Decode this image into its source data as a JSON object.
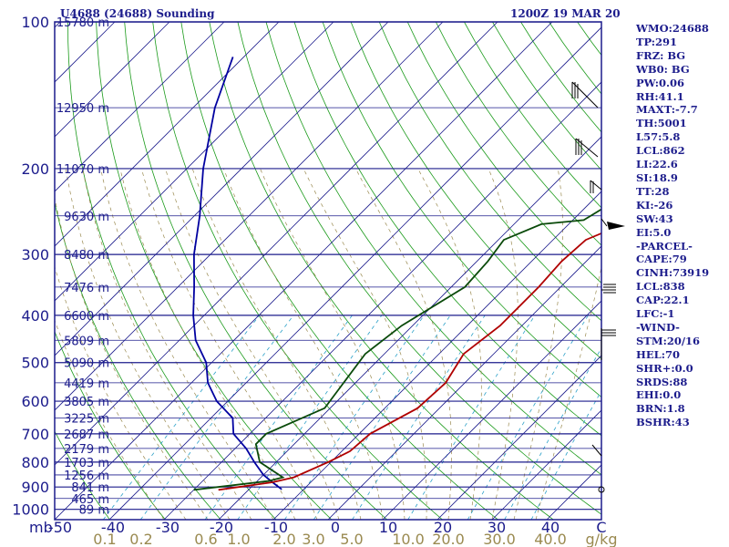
{
  "title_left": "U4688 (24688) Sounding",
  "title_right": "1200Z 19 MAR 20",
  "stats": [
    "WMO:24688",
    "TP:291",
    "FRZ: BG",
    "WB0: BG",
    "PW:0.06",
    "RH:41.1",
    "MAXT:-7.7",
    "TH:5001",
    "L57:5.8",
    "LCL:862",
    "LI:22.6",
    "SI:18.9",
    "TT:28",
    "KI:-26",
    "SW:43",
    "EI:5.0",
    "-PARCEL-",
    "CAPE:79",
    "CINH:73919",
    "LCL:838",
    "CAP:22.1",
    "LFC:-1",
    "-WIND-",
    "STM:20/16",
    "HEL:70",
    "SHR+:0.0",
    "SRDS:88",
    "EHI:0.0",
    "BRN:1.8",
    "BSHR:43"
  ],
  "colors": {
    "isobar": "#1c1c8c",
    "isotherm": "#1c1c8c",
    "dry_adiabat": "#1a9a1a",
    "moist_adiabat": "#9a8a50",
    "mixing_ratio": "#2aa0c8",
    "temperature": "#b00000",
    "dewpoint": "#0a4a0a",
    "parcel": "#0000a0",
    "text": "#1c1c8c",
    "mixing_label": "#9a8a50"
  },
  "chart_data": {
    "type": "skew-t",
    "pressure_ticks": [
      100,
      200,
      300,
      400,
      500,
      600,
      700,
      800,
      900,
      1000
    ],
    "pressure_unit_label": "mb",
    "temperature_ticks": [
      -50,
      -40,
      -30,
      -20,
      -10,
      0,
      10,
      20,
      30,
      40
    ],
    "temperature_end_label": "C",
    "mixing_ratio_ticks": [
      "0.1",
      "0.2",
      "0.6",
      "1.0",
      "2.0",
      "3.0",
      "5.0",
      "10.0",
      "20.0",
      "30.0",
      "40.0"
    ],
    "mixing_ratio_unit": "g/kg",
    "height_labels": [
      {
        "p": 100,
        "label": "15780 m"
      },
      {
        "p": 150,
        "label": "12950 m"
      },
      {
        "p": 200,
        "label": "11070 m"
      },
      {
        "p": 250,
        "label": "9630 m"
      },
      {
        "p": 300,
        "label": "8480 m"
      },
      {
        "p": 350,
        "label": "7476 m"
      },
      {
        "p": 400,
        "label": "6600 m"
      },
      {
        "p": 450,
        "label": "5809 m"
      },
      {
        "p": 500,
        "label": "5090 m"
      },
      {
        "p": 550,
        "label": "4419 m"
      },
      {
        "p": 600,
        "label": "3805 m"
      },
      {
        "p": 650,
        "label": "3225 m"
      },
      {
        "p": 700,
        "label": "2687 m"
      },
      {
        "p": 750,
        "label": "2179 m"
      },
      {
        "p": 800,
        "label": "1703 m"
      },
      {
        "p": 850,
        "label": "1256 m"
      },
      {
        "p": 900,
        "label": "841 m"
      },
      {
        "p": 950,
        "label": "465 m"
      },
      {
        "p": 1000,
        "label": "89 m"
      }
    ],
    "temperature_profile": [
      [
        912,
        -25.5
      ],
      [
        880,
        -17
      ],
      [
        860,
        -14
      ],
      [
        800,
        -10.5
      ],
      [
        760,
        -8.5
      ],
      [
        700,
        -8
      ],
      [
        620,
        -4
      ],
      [
        550,
        -3.5
      ],
      [
        480,
        -5.5
      ],
      [
        420,
        -4
      ],
      [
        350,
        -4
      ],
      [
        310,
        -4.5
      ],
      [
        280,
        -4
      ],
      [
        260,
        0
      ],
      [
        255,
        6
      ],
      [
        240,
        8.5
      ],
      [
        220,
        10
      ],
      [
        200,
        8.5
      ],
      [
        185,
        9
      ],
      [
        165,
        9
      ],
      [
        150,
        7.5
      ],
      [
        130,
        10
      ],
      [
        100,
        -1
      ]
    ],
    "dewpoint_profile": [
      [
        912,
        -30
      ],
      [
        875,
        -18
      ],
      [
        860,
        -16
      ],
      [
        800,
        -23
      ],
      [
        735,
        -27
      ],
      [
        700,
        -27
      ],
      [
        620,
        -21
      ],
      [
        560,
        -22
      ],
      [
        480,
        -23.5
      ],
      [
        420,
        -22
      ],
      [
        350,
        -17.5
      ],
      [
        310,
        -18
      ],
      [
        280,
        -19
      ],
      [
        260,
        -15
      ],
      [
        255,
        -8
      ],
      [
        235,
        -6
      ],
      [
        210,
        -4
      ],
      [
        200,
        -3
      ],
      [
        180,
        -5
      ],
      [
        165,
        -7
      ],
      [
        150,
        -7
      ],
      [
        130,
        -7
      ],
      [
        100,
        -13
      ]
    ],
    "parcel_profile": [
      [
        910,
        -14
      ],
      [
        880,
        -17
      ],
      [
        850,
        -20
      ],
      [
        800,
        -24
      ],
      [
        750,
        -28
      ],
      [
        700,
        -33
      ],
      [
        650,
        -36
      ],
      [
        600,
        -42
      ],
      [
        550,
        -47
      ],
      [
        500,
        -51
      ],
      [
        450,
        -57
      ],
      [
        400,
        -62
      ],
      [
        350,
        -67
      ],
      [
        300,
        -73
      ],
      [
        250,
        -79
      ],
      [
        200,
        -87
      ],
      [
        150,
        -96
      ],
      [
        118,
        -102
      ]
    ]
  }
}
